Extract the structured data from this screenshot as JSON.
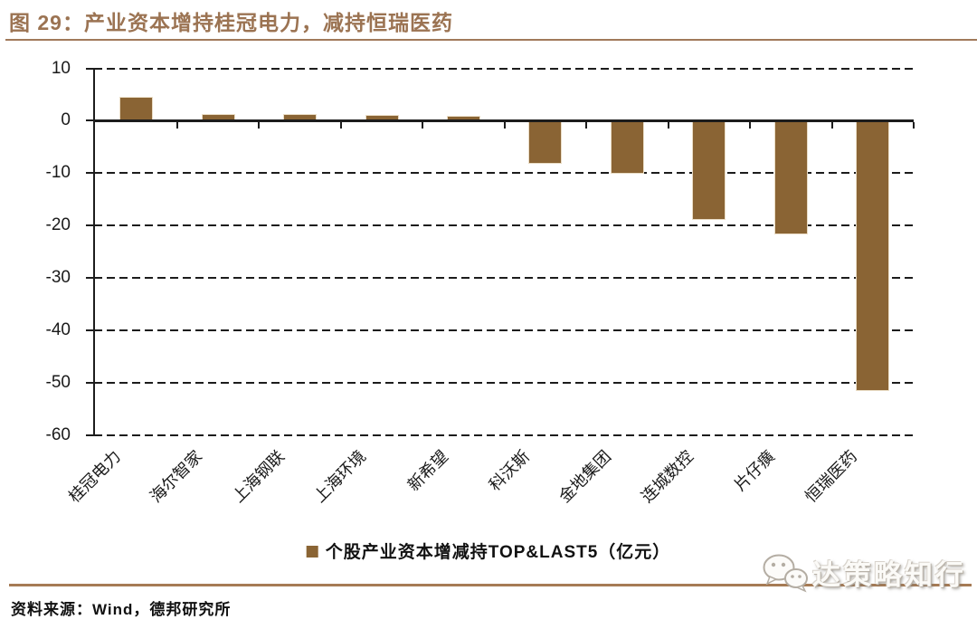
{
  "header": {
    "title": "图 29：产业资本增持桂冠电力，减持恒瑞医药"
  },
  "chart_data": {
    "type": "bar",
    "title": "图 29：产业资本增持桂冠电力，减持恒瑞医药",
    "legend": "个股产业资本增减持TOP&LAST5（亿元）",
    "legend_position": "bottom-center",
    "categories": [
      "桂冠电力",
      "海尔智家",
      "上海钢联",
      "上海环境",
      "新希望",
      "科沃斯",
      "金地集团",
      "连城数控",
      "片仔癀",
      "恒瑞医药"
    ],
    "values": [
      4.6,
      1.2,
      1.2,
      1.1,
      1.0,
      -8.2,
      -10.1,
      -18.9,
      -21.7,
      -51.5
    ],
    "unit": "亿元",
    "xlabel": "",
    "ylabel": "",
    "ylim": [
      -60,
      10
    ],
    "yticks": [
      10,
      0,
      -10,
      -20,
      -30,
      -40,
      -50,
      -60
    ],
    "grid": "horizontal-dashed",
    "bar_color": "#8A6434"
  },
  "colors": {
    "bar": "#8A6434",
    "title_text": "#9B7352",
    "rule_brown": "#A1795A",
    "axis_black": "#1c1c1c"
  },
  "footer": {
    "source": "资料来源：Wind，德邦研究所"
  },
  "watermark": {
    "text": "达策略知行",
    "icon": "wechat-chat-bubbles-icon"
  }
}
